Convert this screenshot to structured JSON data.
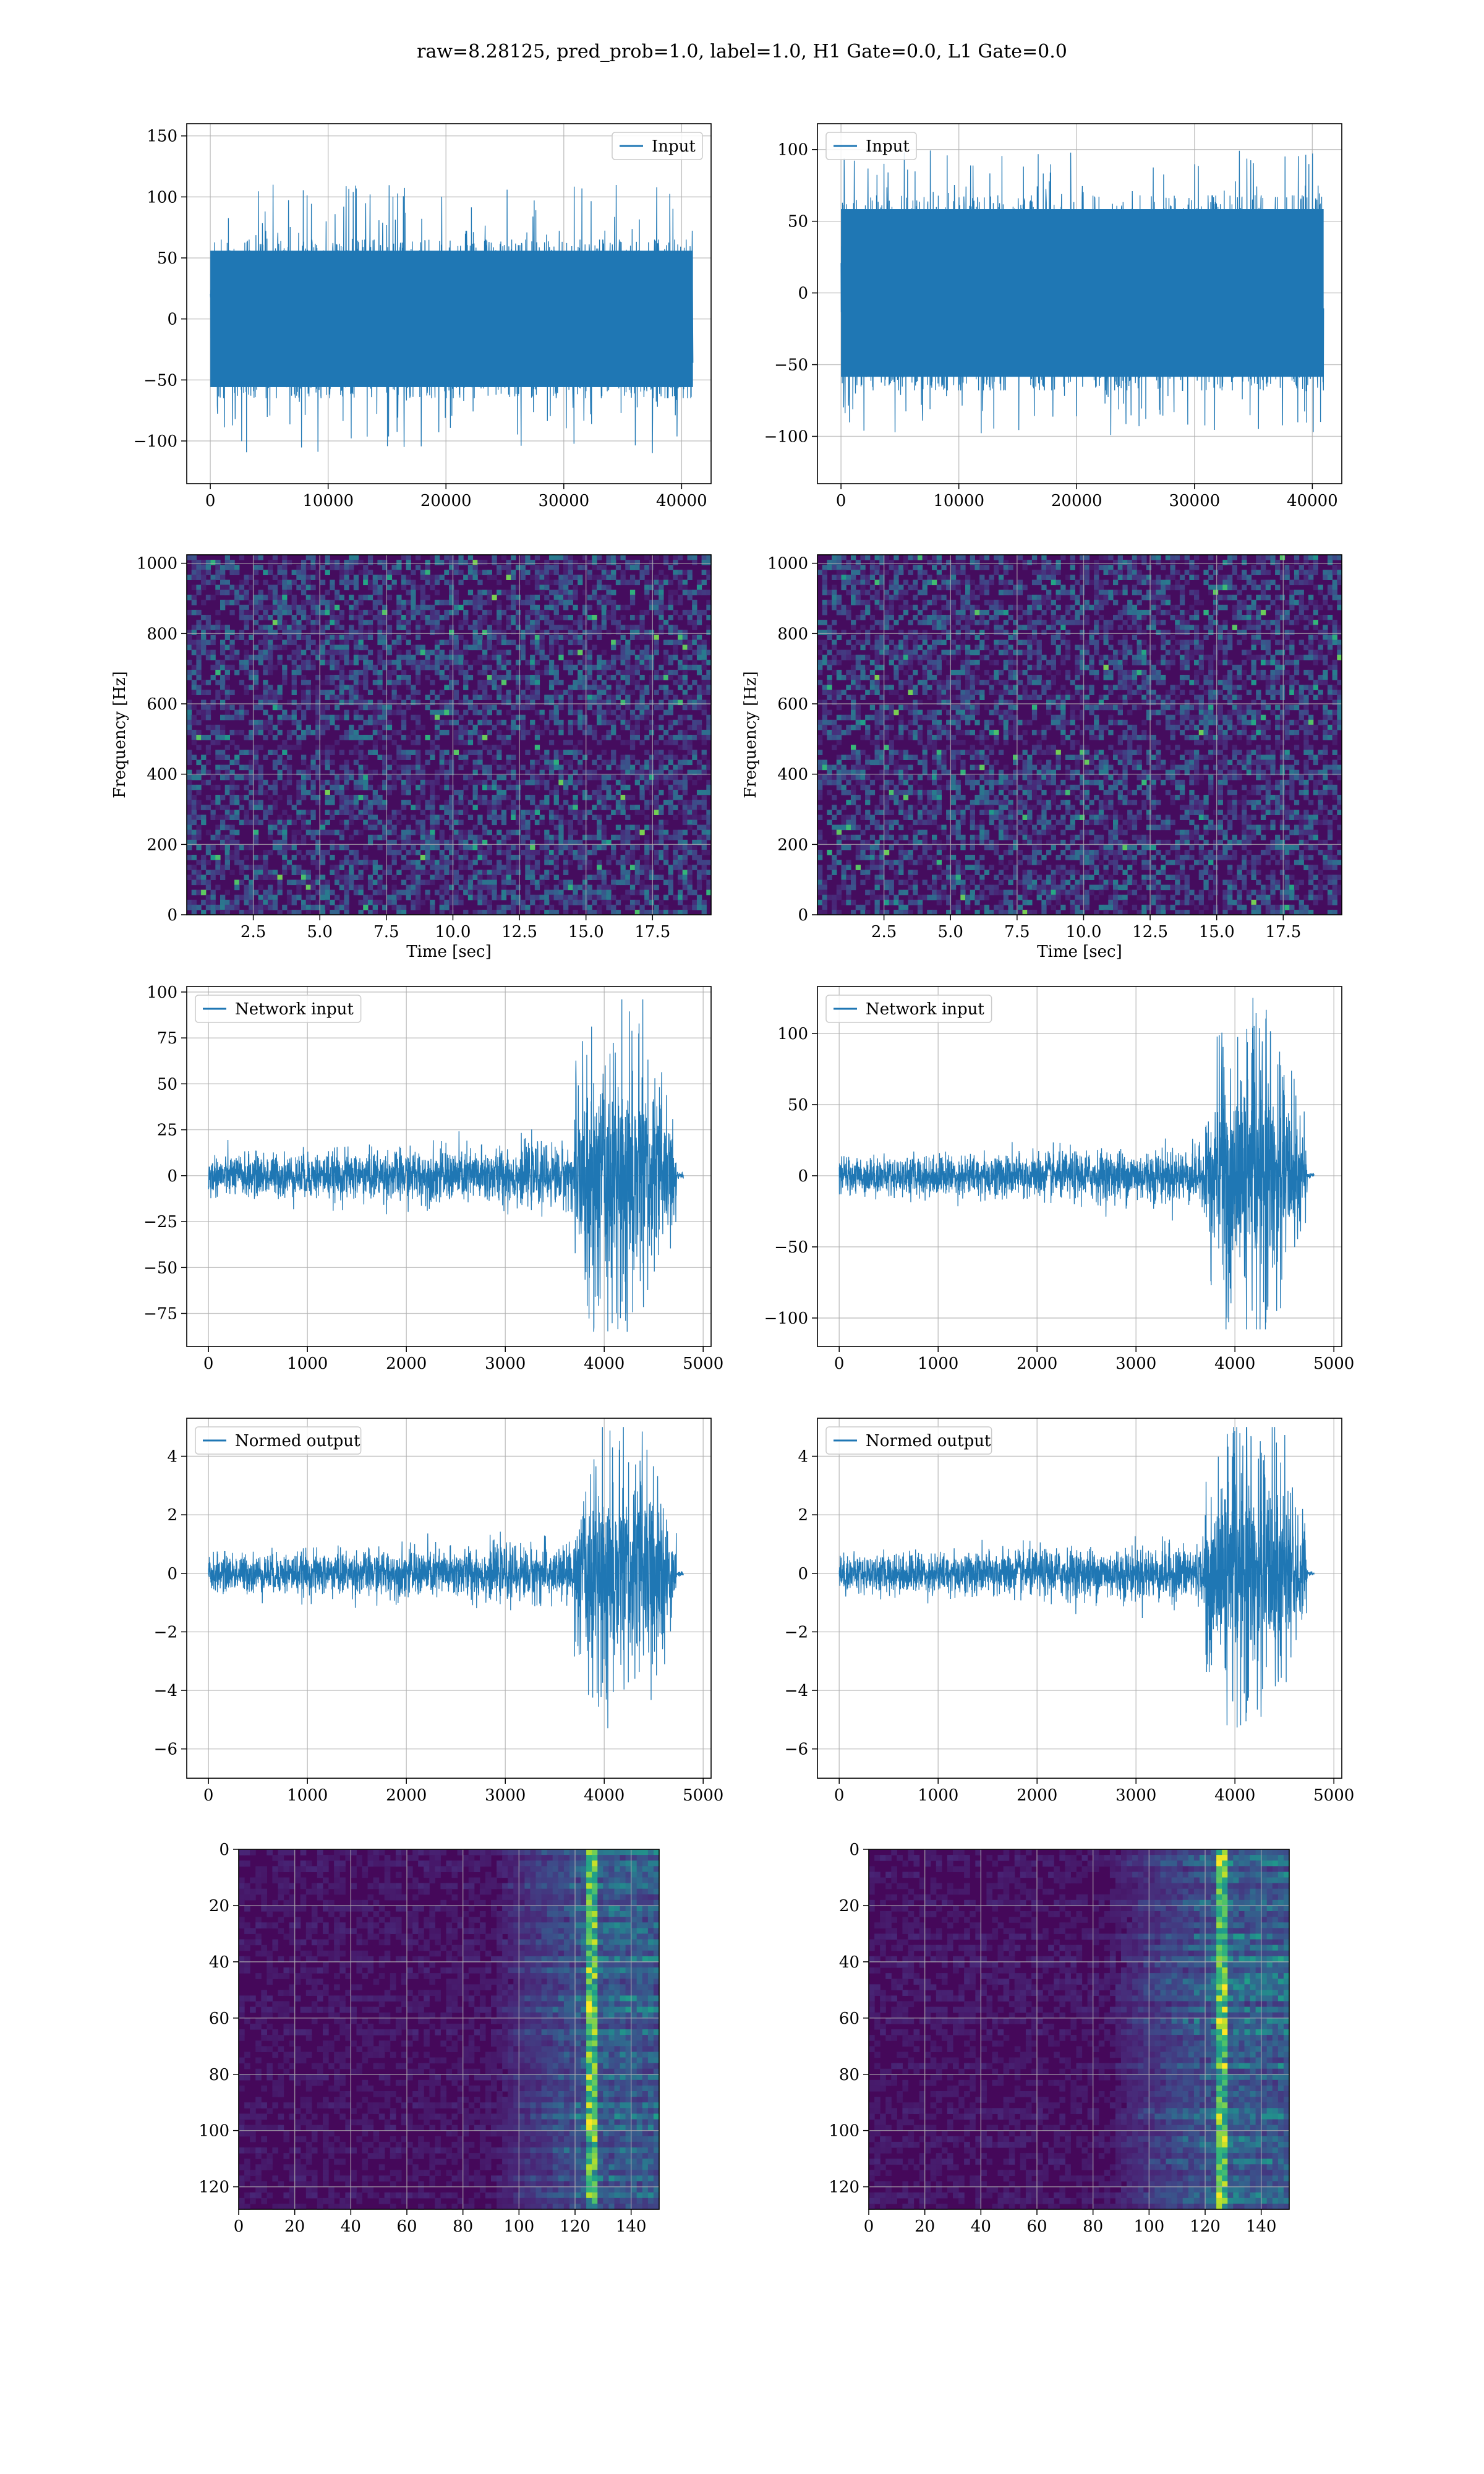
{
  "figure": {
    "title": "raw=8.28125, pred_prob=1.0, label=1.0, H1 Gate=0.0, L1 Gate=0.0",
    "signal_color": "#1f77b4",
    "grid_color": "#b0b0b0"
  },
  "chart_data": [
    {
      "id": "h1-input",
      "type": "line",
      "style": "noise",
      "series": [
        {
          "name": "Input"
        }
      ],
      "legend": "top-right",
      "xlim": [
        -2000,
        42500
      ],
      "ylim": [
        -135,
        160
      ],
      "xticks": [
        0,
        10000,
        20000,
        30000,
        40000
      ],
      "xtick_labels": [
        "0",
        "10000",
        "20000",
        "30000",
        "40000"
      ],
      "yticks": [
        -100,
        -50,
        0,
        50,
        100,
        150
      ],
      "ytick_labels": [
        "−100",
        "−50",
        "0",
        "50",
        "100",
        "150"
      ],
      "xlabel": "",
      "ylabel": "",
      "grid": true,
      "signal": {
        "x_range": [
          0,
          40960
        ],
        "typical_amplitude": 65,
        "max": 147,
        "min": -125
      }
    },
    {
      "id": "l1-input",
      "type": "line",
      "style": "noise",
      "series": [
        {
          "name": "Input"
        }
      ],
      "legend": "top-left",
      "xlim": [
        -2000,
        42500
      ],
      "ylim": [
        -133,
        118
      ],
      "xticks": [
        0,
        10000,
        20000,
        30000,
        40000
      ],
      "xtick_labels": [
        "0",
        "10000",
        "20000",
        "30000",
        "40000"
      ],
      "yticks": [
        -100,
        -50,
        0,
        50,
        100
      ],
      "ytick_labels": [
        "−100",
        "−50",
        "0",
        "50",
        "100"
      ],
      "xlabel": "",
      "ylabel": "",
      "grid": true,
      "signal": {
        "x_range": [
          0,
          40960
        ],
        "typical_amplitude": 68,
        "max": 125,
        "min": -122
      }
    },
    {
      "id": "h1-spectrogram",
      "type": "heatmap",
      "colormap": "viridis",
      "xlim": [
        0,
        19.7
      ],
      "ylim": [
        0,
        1024
      ],
      "xticks": [
        2.5,
        5.0,
        7.5,
        10.0,
        12.5,
        15.0,
        17.5
      ],
      "xtick_labels": [
        "2.5",
        "5.0",
        "7.5",
        "10.0",
        "12.5",
        "15.0",
        "17.5"
      ],
      "yticks": [
        0,
        200,
        400,
        600,
        800,
        1000
      ],
      "ytick_labels": [
        "0",
        "200",
        "400",
        "600",
        "800",
        "1000"
      ],
      "xlabel": "Time [sec]",
      "ylabel": "Frequency [Hz]",
      "grid": true
    },
    {
      "id": "l1-spectrogram",
      "type": "heatmap",
      "colormap": "viridis",
      "xlim": [
        0,
        19.7
      ],
      "ylim": [
        0,
        1024
      ],
      "xticks": [
        2.5,
        5.0,
        7.5,
        10.0,
        12.5,
        15.0,
        17.5
      ],
      "xtick_labels": [
        "2.5",
        "5.0",
        "7.5",
        "10.0",
        "12.5",
        "15.0",
        "17.5"
      ],
      "yticks": [
        0,
        200,
        400,
        600,
        800,
        1000
      ],
      "ytick_labels": [
        "0",
        "200",
        "400",
        "600",
        "800",
        "1000"
      ],
      "xlabel": "Time [sec]",
      "ylabel": "Frequency [Hz]",
      "grid": true
    },
    {
      "id": "h1-network-input",
      "type": "line",
      "style": "chirp",
      "series": [
        {
          "name": "Network input"
        }
      ],
      "legend": "top-left",
      "xlim": [
        -220,
        5080
      ],
      "ylim": [
        -93,
        103
      ],
      "xticks": [
        0,
        1000,
        2000,
        3000,
        4000,
        5000
      ],
      "xtick_labels": [
        "0",
        "1000",
        "2000",
        "3000",
        "4000",
        "5000"
      ],
      "yticks": [
        -75,
        -50,
        -25,
        0,
        25,
        50,
        75,
        100
      ],
      "ytick_labels": [
        "−75",
        "−50",
        "−25",
        "0",
        "25",
        "50",
        "75",
        "100"
      ],
      "xlabel": "",
      "ylabel": "",
      "grid": true,
      "signal": {
        "x_range": [
          0,
          4800
        ],
        "burst_start": 3700,
        "burst_end": 4730,
        "base_amplitude": 12,
        "burst_amplitude": 55,
        "max": 96,
        "min": -85
      }
    },
    {
      "id": "l1-network-input",
      "type": "line",
      "style": "chirp",
      "series": [
        {
          "name": "Network input"
        }
      ],
      "legend": "top-left",
      "xlim": [
        -220,
        5080
      ],
      "ylim": [
        -120,
        133
      ],
      "xticks": [
        0,
        1000,
        2000,
        3000,
        4000,
        5000
      ],
      "xtick_labels": [
        "0",
        "1000",
        "2000",
        "3000",
        "4000",
        "5000"
      ],
      "yticks": [
        -100,
        -50,
        0,
        50,
        100
      ],
      "ytick_labels": [
        "−100",
        "−50",
        "0",
        "50",
        "100"
      ],
      "xlabel": "",
      "ylabel": "",
      "grid": true,
      "signal": {
        "x_range": [
          0,
          4800
        ],
        "burst_start": 3700,
        "burst_end": 4730,
        "base_amplitude": 14,
        "burst_amplitude": 65,
        "max": 125,
        "min": -108
      }
    },
    {
      "id": "h1-normed-output",
      "type": "line",
      "style": "chirp",
      "series": [
        {
          "name": "Normed output"
        }
      ],
      "legend": "top-left",
      "xlim": [
        -220,
        5080
      ],
      "ylim": [
        -7.0,
        5.3
      ],
      "xticks": [
        0,
        1000,
        2000,
        3000,
        4000,
        5000
      ],
      "xtick_labels": [
        "0",
        "1000",
        "2000",
        "3000",
        "4000",
        "5000"
      ],
      "yticks": [
        -6,
        -4,
        -2,
        0,
        2,
        4
      ],
      "ytick_labels": [
        "−6",
        "−4",
        "−2",
        "0",
        "2",
        "4"
      ],
      "xlabel": "",
      "ylabel": "",
      "grid": true,
      "signal": {
        "x_range": [
          0,
          4800
        ],
        "burst_start": 3700,
        "burst_end": 4730,
        "base_amplitude": 0.7,
        "burst_amplitude": 3.0,
        "max": 5.0,
        "min": -6.4
      }
    },
    {
      "id": "l1-normed-output",
      "type": "line",
      "style": "chirp",
      "series": [
        {
          "name": "Normed output"
        }
      ],
      "legend": "top-left",
      "xlim": [
        -220,
        5080
      ],
      "ylim": [
        -7.0,
        5.3
      ],
      "xticks": [
        0,
        1000,
        2000,
        3000,
        4000,
        5000
      ],
      "xtick_labels": [
        "0",
        "1000",
        "2000",
        "3000",
        "4000",
        "5000"
      ],
      "yticks": [
        -6,
        -4,
        -2,
        0,
        2,
        4
      ],
      "ytick_labels": [
        "−6",
        "−4",
        "−2",
        "0",
        "2",
        "4"
      ],
      "xlabel": "",
      "ylabel": "",
      "grid": true,
      "signal": {
        "x_range": [
          0,
          4800
        ],
        "burst_start": 3700,
        "burst_end": 4730,
        "base_amplitude": 0.7,
        "burst_amplitude": 3.0,
        "max": 5.0,
        "min": -6.4
      }
    },
    {
      "id": "h1-feature-map",
      "type": "heatmap",
      "colormap": "viridis",
      "orientation": "image",
      "xlim": [
        0,
        150
      ],
      "ylim": [
        128,
        0
      ],
      "xticks": [
        0,
        20,
        40,
        60,
        80,
        100,
        120,
        140
      ],
      "xtick_labels": [
        "0",
        "20",
        "40",
        "60",
        "80",
        "100",
        "120",
        "140"
      ],
      "yticks": [
        0,
        20,
        40,
        60,
        80,
        100,
        120
      ],
      "ytick_labels": [
        "0",
        "20",
        "40",
        "60",
        "80",
        "100",
        "120"
      ],
      "xlabel": "",
      "ylabel": "",
      "grid": true,
      "activation": {
        "onset": 90,
        "peak": 126,
        "end": 150
      }
    },
    {
      "id": "l1-feature-map",
      "type": "heatmap",
      "colormap": "viridis",
      "orientation": "image",
      "xlim": [
        0,
        150
      ],
      "ylim": [
        128,
        0
      ],
      "xticks": [
        0,
        20,
        40,
        60,
        80,
        100,
        120,
        140
      ],
      "xtick_labels": [
        "0",
        "20",
        "40",
        "60",
        "80",
        "100",
        "120",
        "140"
      ],
      "yticks": [
        0,
        20,
        40,
        60,
        80,
        100,
        120
      ],
      "ytick_labels": [
        "0",
        "20",
        "40",
        "60",
        "80",
        "100",
        "120"
      ],
      "xlabel": "",
      "ylabel": "",
      "grid": true,
      "activation": {
        "onset": 85,
        "peak": 126,
        "end": 150
      }
    }
  ]
}
